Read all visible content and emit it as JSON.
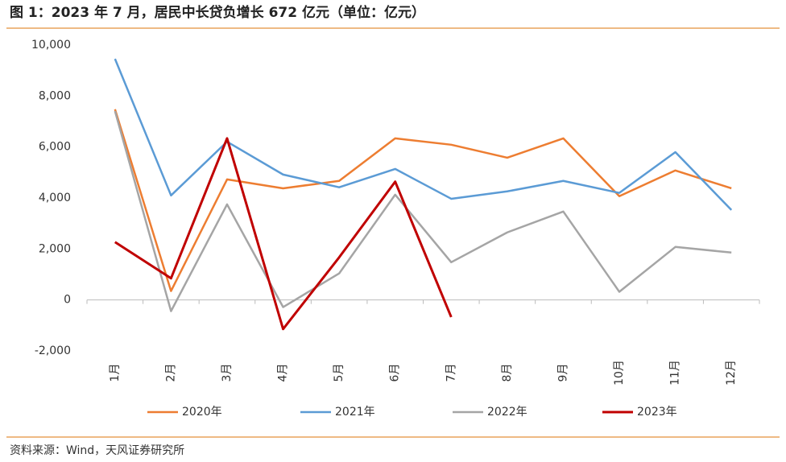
{
  "chart_data": {
    "type": "line",
    "title": "图 1：2023 年 7 月，居民中长贷负增长 672 亿元（单位：亿元）",
    "categories": [
      "1月",
      "2月",
      "3月",
      "4月",
      "5月",
      "6月",
      "7月",
      "8月",
      "9月",
      "10月",
      "11月",
      "12月"
    ],
    "series": [
      {
        "name": "2020年",
        "color": "#ed7d31",
        "values": [
          7480,
          350,
          4730,
          4380,
          4670,
          6340,
          6090,
          5580,
          6340,
          4070,
          5080,
          4380
        ]
      },
      {
        "name": "2021年",
        "color": "#5b9bd5",
        "values": [
          9460,
          4100,
          6210,
          4920,
          4420,
          5140,
          3970,
          4260,
          4670,
          4200,
          5800,
          3530
        ]
      },
      {
        "name": "2022年",
        "color": "#a5a5a5",
        "values": [
          7410,
          -440,
          3750,
          -280,
          1040,
          4130,
          1480,
          2650,
          3470,
          320,
          2080,
          1860
        ]
      },
      {
        "name": "2023年",
        "color": "#c00000",
        "values": [
          2270,
          850,
          6340,
          -1140,
          1670,
          4640,
          -672,
          null,
          null,
          null,
          null,
          null
        ]
      }
    ],
    "ylim": [
      -2000,
      10000
    ],
    "yticks": [
      {
        "value": -2000,
        "label": "-2,000"
      },
      0,
      {
        "value": 2000,
        "label": "2,000"
      },
      {
        "value": 4000,
        "label": "4,000"
      },
      {
        "value": 6000,
        "label": "6,000"
      },
      {
        "value": 8000,
        "label": "8,000"
      },
      {
        "value": 10000,
        "label": "10,000"
      }
    ],
    "grid": false,
    "legend": "bottom",
    "source": "资料来源：Wind，天风证券研究所"
  }
}
